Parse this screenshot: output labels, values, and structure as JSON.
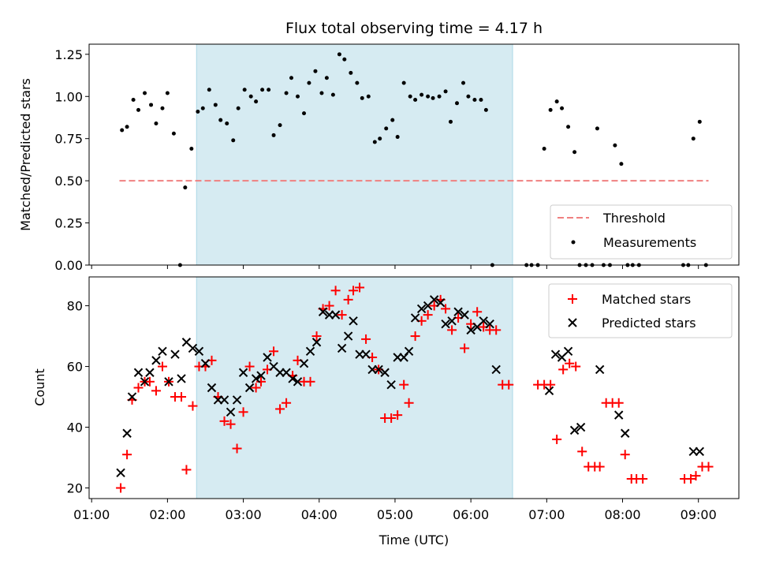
{
  "chart_data": [
    {
      "type": "scatter",
      "title": "Flux total observing time = 4.17 h",
      "xlabel": "",
      "ylabel": "Matched/Predicted stars",
      "xlim": [
        "00:58",
        "09:32"
      ],
      "ylim": [
        0,
        1.31
      ],
      "yticks": [
        "0.00",
        "0.25",
        "0.50",
        "0.75",
        "1.00",
        "1.25"
      ],
      "shaded_span": [
        "02:23",
        "06:33"
      ],
      "legend_position": "lower-right",
      "threshold": {
        "name": "Threshold",
        "value": 0.5,
        "x_range": [
          "01:22",
          "09:08"
        ],
        "color": "#f08080"
      },
      "series": [
        {
          "name": "Measurements",
          "color": "#000000",
          "points": [
            [
              "01:24",
              0.8
            ],
            [
              "01:28",
              0.82
            ],
            [
              "01:33",
              0.98
            ],
            [
              "01:37",
              0.92
            ],
            [
              "01:42",
              1.02
            ],
            [
              "01:47",
              0.95
            ],
            [
              "01:51",
              0.84
            ],
            [
              "01:56",
              0.93
            ],
            [
              "02:00",
              1.02
            ],
            [
              "02:05",
              0.78
            ],
            [
              "02:10",
              0.0
            ],
            [
              "02:14",
              0.46
            ],
            [
              "02:19",
              0.69
            ],
            [
              "02:24",
              0.91
            ],
            [
              "02:28",
              0.93
            ],
            [
              "02:33",
              1.04
            ],
            [
              "02:38",
              0.95
            ],
            [
              "02:42",
              0.86
            ],
            [
              "02:47",
              0.84
            ],
            [
              "02:52",
              0.74
            ],
            [
              "02:56",
              0.93
            ],
            [
              "03:01",
              1.04
            ],
            [
              "03:06",
              1.0
            ],
            [
              "03:10",
              0.97
            ],
            [
              "03:15",
              1.04
            ],
            [
              "03:20",
              1.04
            ],
            [
              "03:24",
              0.77
            ],
            [
              "03:29",
              0.83
            ],
            [
              "03:34",
              1.02
            ],
            [
              "03:38",
              1.11
            ],
            [
              "03:43",
              1.0
            ],
            [
              "03:48",
              0.9
            ],
            [
              "03:52",
              1.08
            ],
            [
              "03:57",
              1.15
            ],
            [
              "04:02",
              1.02
            ],
            [
              "04:06",
              1.11
            ],
            [
              "04:11",
              1.01
            ],
            [
              "04:16",
              1.25
            ],
            [
              "04:20",
              1.22
            ],
            [
              "04:25",
              1.14
            ],
            [
              "04:30",
              1.08
            ],
            [
              "04:34",
              0.99
            ],
            [
              "04:39",
              1.0
            ],
            [
              "04:44",
              0.73
            ],
            [
              "04:48",
              0.75
            ],
            [
              "04:53",
              0.81
            ],
            [
              "04:58",
              0.86
            ],
            [
              "05:02",
              0.76
            ],
            [
              "05:07",
              1.08
            ],
            [
              "05:12",
              1.0
            ],
            [
              "05:16",
              0.98
            ],
            [
              "05:21",
              1.01
            ],
            [
              "05:26",
              1.0
            ],
            [
              "05:30",
              0.99
            ],
            [
              "05:35",
              1.0
            ],
            [
              "05:40",
              1.03
            ],
            [
              "05:44",
              0.85
            ],
            [
              "05:49",
              0.96
            ],
            [
              "05:54",
              1.08
            ],
            [
              "05:58",
              1.0
            ],
            [
              "06:03",
              0.98
            ],
            [
              "06:08",
              0.98
            ],
            [
              "06:12",
              0.92
            ],
            [
              "06:17",
              0.0
            ],
            [
              "06:44",
              0.0
            ],
            [
              "06:48",
              0.0
            ],
            [
              "06:53",
              0.0
            ],
            [
              "06:58",
              0.69
            ],
            [
              "07:03",
              0.92
            ],
            [
              "07:08",
              0.97
            ],
            [
              "07:12",
              0.93
            ],
            [
              "07:17",
              0.82
            ],
            [
              "07:22",
              0.67
            ],
            [
              "07:26",
              0.0
            ],
            [
              "07:31",
              0.0
            ],
            [
              "07:36",
              0.0
            ],
            [
              "07:40",
              0.81
            ],
            [
              "07:45",
              0.0
            ],
            [
              "07:50",
              0.0
            ],
            [
              "07:54",
              0.71
            ],
            [
              "07:59",
              0.6
            ],
            [
              "08:04",
              0.0
            ],
            [
              "08:08",
              0.0
            ],
            [
              "08:13",
              0.0
            ],
            [
              "08:48",
              0.0
            ],
            [
              "08:52",
              0.0
            ],
            [
              "08:56",
              0.75
            ],
            [
              "09:01",
              0.85
            ],
            [
              "09:06",
              0.0
            ]
          ]
        }
      ]
    },
    {
      "type": "scatter",
      "title": "",
      "xlabel": "Time (UTC)",
      "ylabel": "Count",
      "xlim": [
        "00:58",
        "09:32"
      ],
      "ylim": [
        16.5,
        89.5
      ],
      "xticks": [
        "01:00",
        "02:00",
        "03:00",
        "04:00",
        "05:00",
        "06:00",
        "07:00",
        "08:00",
        "09:00"
      ],
      "yticks": [
        "20",
        "40",
        "60",
        "80"
      ],
      "shaded_span": [
        "02:23",
        "06:33"
      ],
      "legend_position": "upper-right",
      "series": [
        {
          "name": "Matched stars",
          "color": "#ff0000",
          "marker": "plus",
          "points": [
            [
              "01:23",
              20
            ],
            [
              "01:28",
              31
            ],
            [
              "01:32",
              49
            ],
            [
              "01:37",
              53
            ],
            [
              "01:42",
              55
            ],
            [
              "01:46",
              55
            ],
            [
              "01:51",
              52
            ],
            [
              "01:56",
              60
            ],
            [
              "02:01",
              55
            ],
            [
              "02:06",
              50
            ],
            [
              "02:11",
              50
            ],
            [
              "02:15",
              26
            ],
            [
              "02:20",
              47
            ],
            [
              "02:25",
              60
            ],
            [
              "02:30",
              60
            ],
            [
              "02:35",
              62
            ],
            [
              "02:40",
              50
            ],
            [
              "02:45",
              42
            ],
            [
              "02:50",
              41
            ],
            [
              "02:55",
              33
            ],
            [
              "03:00",
              45
            ],
            [
              "03:05",
              60
            ],
            [
              "03:10",
              53
            ],
            [
              "03:14",
              55
            ],
            [
              "03:19",
              59
            ],
            [
              "03:24",
              65
            ],
            [
              "03:29",
              46
            ],
            [
              "03:34",
              48
            ],
            [
              "03:39",
              57
            ],
            [
              "03:43",
              62
            ],
            [
              "03:48",
              55
            ],
            [
              "03:53",
              55
            ],
            [
              "03:58",
              70
            ],
            [
              "04:03",
              79
            ],
            [
              "04:08",
              80
            ],
            [
              "04:13",
              85
            ],
            [
              "04:18",
              77
            ],
            [
              "04:23",
              82
            ],
            [
              "04:27",
              85
            ],
            [
              "04:32",
              86
            ],
            [
              "04:37",
              69
            ],
            [
              "04:42",
              63
            ],
            [
              "04:47",
              59
            ],
            [
              "04:52",
              43
            ],
            [
              "04:57",
              43
            ],
            [
              "05:02",
              44
            ],
            [
              "05:07",
              54
            ],
            [
              "05:11",
              48
            ],
            [
              "05:16",
              70
            ],
            [
              "05:21",
              75
            ],
            [
              "05:26",
              77
            ],
            [
              "05:31",
              80
            ],
            [
              "05:36",
              82
            ],
            [
              "05:40",
              79
            ],
            [
              "05:45",
              72
            ],
            [
              "05:50",
              76
            ],
            [
              "05:55",
              66
            ],
            [
              "06:00",
              74
            ],
            [
              "06:05",
              78
            ],
            [
              "06:10",
              73
            ],
            [
              "06:15",
              72
            ],
            [
              "06:20",
              72
            ],
            [
              "06:25",
              54
            ],
            [
              "06:30",
              54
            ],
            [
              "06:53",
              54
            ],
            [
              "06:58",
              54
            ],
            [
              "07:03",
              54
            ],
            [
              "07:08",
              36
            ],
            [
              "07:13",
              59
            ],
            [
              "07:18",
              61
            ],
            [
              "07:23",
              60
            ],
            [
              "07:28",
              32
            ],
            [
              "07:33",
              27
            ],
            [
              "07:38",
              27
            ],
            [
              "07:42",
              27
            ],
            [
              "07:47",
              48
            ],
            [
              "07:52",
              48
            ],
            [
              "07:57",
              48
            ],
            [
              "08:02",
              31
            ],
            [
              "08:07",
              23
            ],
            [
              "08:11",
              23
            ],
            [
              "08:16",
              23
            ],
            [
              "08:49",
              23
            ],
            [
              "08:54",
              23
            ],
            [
              "08:58",
              24
            ],
            [
              "09:03",
              27
            ],
            [
              "09:08",
              27
            ]
          ]
        },
        {
          "name": "Predicted stars",
          "color": "#000000",
          "marker": "x",
          "points": [
            [
              "01:23",
              25
            ],
            [
              "01:28",
              38
            ],
            [
              "01:32",
              50
            ],
            [
              "01:37",
              58
            ],
            [
              "01:42",
              55
            ],
            [
              "01:46",
              58
            ],
            [
              "01:51",
              62
            ],
            [
              "01:56",
              65
            ],
            [
              "02:01",
              55
            ],
            [
              "02:06",
              64
            ],
            [
              "02:11",
              56
            ],
            [
              "02:15",
              68
            ],
            [
              "02:20",
              66
            ],
            [
              "02:25",
              65
            ],
            [
              "02:30",
              61
            ],
            [
              "02:35",
              53
            ],
            [
              "02:40",
              49
            ],
            [
              "02:45",
              49
            ],
            [
              "02:50",
              45
            ],
            [
              "02:55",
              49
            ],
            [
              "03:00",
              58
            ],
            [
              "03:05",
              53
            ],
            [
              "03:10",
              56
            ],
            [
              "03:14",
              57
            ],
            [
              "03:19",
              63
            ],
            [
              "03:24",
              60
            ],
            [
              "03:29",
              58
            ],
            [
              "03:34",
              58
            ],
            [
              "03:39",
              56
            ],
            [
              "03:43",
              55
            ],
            [
              "03:48",
              61
            ],
            [
              "03:53",
              65
            ],
            [
              "03:58",
              68
            ],
            [
              "04:03",
              78
            ],
            [
              "04:08",
              77
            ],
            [
              "04:13",
              77
            ],
            [
              "04:18",
              66
            ],
            [
              "04:23",
              70
            ],
            [
              "04:27",
              75
            ],
            [
              "04:32",
              64
            ],
            [
              "04:37",
              64
            ],
            [
              "04:42",
              59
            ],
            [
              "04:47",
              59
            ],
            [
              "04:52",
              58
            ],
            [
              "04:57",
              54
            ],
            [
              "05:02",
              63
            ],
            [
              "05:07",
              63
            ],
            [
              "05:11",
              65
            ],
            [
              "05:16",
              76
            ],
            [
              "05:21",
              79
            ],
            [
              "05:26",
              80
            ],
            [
              "05:31",
              82
            ],
            [
              "05:36",
              81
            ],
            [
              "05:40",
              74
            ],
            [
              "05:45",
              75
            ],
            [
              "05:50",
              78
            ],
            [
              "05:55",
              77
            ],
            [
              "06:00",
              72
            ],
            [
              "06:05",
              73
            ],
            [
              "06:10",
              75
            ],
            [
              "06:15",
              74
            ],
            [
              "06:20",
              59
            ],
            [
              "07:02",
              52
            ],
            [
              "07:07",
              64
            ],
            [
              "07:12",
              63
            ],
            [
              "07:17",
              65
            ],
            [
              "07:22",
              39
            ],
            [
              "07:27",
              40
            ],
            [
              "07:42",
              59
            ],
            [
              "07:57",
              44
            ],
            [
              "08:02",
              38
            ],
            [
              "08:56",
              32
            ],
            [
              "09:01",
              32
            ]
          ]
        }
      ]
    }
  ]
}
